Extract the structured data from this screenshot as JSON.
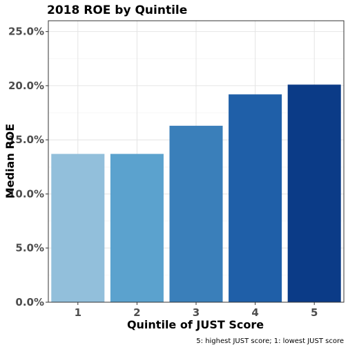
{
  "chart_data": {
    "type": "bar",
    "title": "2018 ROE by Quintile",
    "xlabel": "Quintile of JUST Score",
    "ylabel": "Median ROE",
    "caption": "5: highest JUST score; 1: lowest JUST score",
    "categories": [
      "1",
      "2",
      "3",
      "4",
      "5"
    ],
    "values": [
      13.7,
      13.7,
      16.3,
      19.2,
      20.1
    ],
    "colors": [
      "#92bfdb",
      "#5ba2ce",
      "#3a7fba",
      "#1f5fa8",
      "#0b3b87"
    ],
    "ylim": [
      0,
      26
    ],
    "yticks": [
      0,
      5,
      10,
      15,
      20,
      25
    ],
    "ytick_labels": [
      "0.0%",
      "5.0%",
      "10.0%",
      "15.0%",
      "20.0%",
      "25.0%"
    ],
    "grid": true,
    "legend": "none"
  }
}
